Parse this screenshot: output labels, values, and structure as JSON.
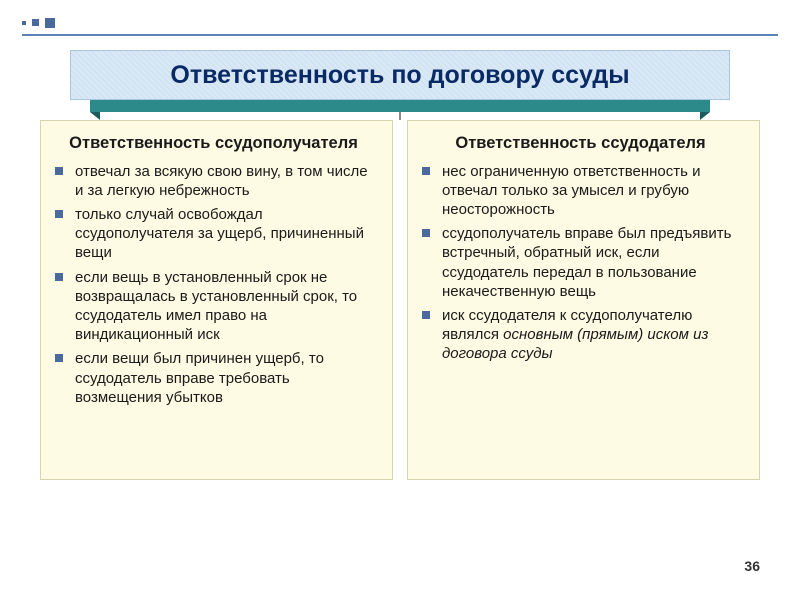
{
  "title": "Ответственность по договору ссуды",
  "left": {
    "heading": "Ответственность ссудополучателя",
    "items": [
      "отвечал за всякую свою вину, в том числе и за легкую небрежность",
      "только случай освобождал ссудополучателя за ущерб, причиненный вещи",
      "если вещь в установленный срок не возвращалась в установленный срок, то ссудодатель имел право на виндикационный иск",
      "если вещи был причинен ущерб, то ссудодатель вправе требовать возмещения убытков"
    ]
  },
  "right": {
    "heading": "Ответственность ссудодателя",
    "items": [
      "нес ограниченную ответственность и отвечал только за умысел и грубую неосторожность",
      "ссудополучатель вправе был предъявить встречный, обратный иск, если ссудодатель передал в пользование некачественную вещь"
    ],
    "item3_plain": "иск ссудодателя к ссудополучателю являлся ",
    "item3_italic": "основным (прямым) иском из договора ссуды"
  },
  "pagenum": "36",
  "colors": {
    "title_bg": "#d9e8f5",
    "title_text": "#0a2a66",
    "banner_under": "#2d8a8a",
    "panel_bg": "#fdfbe3",
    "bullet": "#4a6a9e",
    "line": "#5b83b6"
  }
}
